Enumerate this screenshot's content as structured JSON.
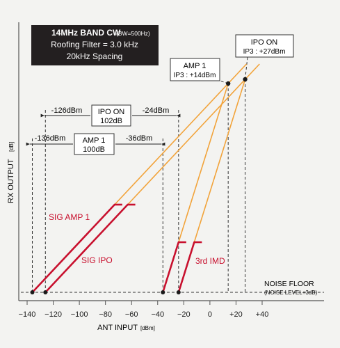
{
  "chart_data": {
    "type": "line",
    "title_lines": [
      "14MHz BAND CW",
      "(BW=500Hz)",
      "Roofing Filter = 3.0 kHz",
      "20kHz Spacing"
    ],
    "xlabel": "ANT INPUT",
    "xlabel_unit": "[dBm]",
    "ylabel": "RX OUTPUT",
    "ylabel_unit": "[dB]",
    "xlim": [
      -142,
      50
    ],
    "x_ticks": [
      {
        "value": -140,
        "label": "−140"
      },
      {
        "value": -120,
        "label": "−120"
      },
      {
        "value": -100,
        "label": "−100"
      },
      {
        "value": -80,
        "label": "−80"
      },
      {
        "value": -60,
        "label": "−60"
      },
      {
        "value": -40,
        "label": "−40"
      },
      {
        "value": -20,
        "label": "−20"
      },
      {
        "value": 0,
        "label": "0"
      },
      {
        "value": 20,
        "label": "+20"
      },
      {
        "value": 40,
        "label": "+40"
      }
    ],
    "noise_floor_label": "NOISE FLOOR",
    "noise_floor_sublabel": "(NOISE LEVEL+3dB)",
    "series": [
      {
        "name": "SIG AMP 1",
        "x": [
          -136,
          -73
        ],
        "y": [
          0,
          63
        ],
        "color": "#c8102e"
      },
      {
        "name": "SIG IPO",
        "x": [
          -126,
          -63
        ],
        "y": [
          0,
          63
        ],
        "color": "#c8102e"
      },
      {
        "name": "3rd IMD",
        "x": [
          -36,
          -24
        ],
        "y": [
          0,
          36
        ],
        "color": "#c8102e"
      },
      {
        "name": "3rd IMD",
        "x": [
          -24,
          -12
        ],
        "y": [
          0,
          36
        ],
        "color": "#c8102e"
      }
    ],
    "extrapolations": [
      {
        "x": [
          -73,
          28
        ],
        "y": [
          63,
          164
        ]
      },
      {
        "x": [
          -63,
          38
        ],
        "y": [
          63,
          164
        ]
      },
      {
        "x": [
          -24,
          14
        ],
        "y": [
          36,
          150
        ]
      },
      {
        "x": [
          -12,
          27
        ],
        "y": [
          36,
          153
        ]
      }
    ],
    "intercept_points": [
      {
        "name": "AMP 1",
        "label": "IP3 : +14dBm",
        "x": 14,
        "y": 150
      },
      {
        "name": "IPO ON",
        "label": "IP3 : +27dBm",
        "x": 27,
        "y": 153
      }
    ],
    "dynamic_ranges": [
      {
        "name": "IPO ON",
        "value_label": "102dB",
        "left_label": "-126dBm",
        "right_label": "-24dBm",
        "x": [
          -126,
          -24
        ]
      },
      {
        "name": "AMP 1",
        "value_label": "100dB",
        "left_label": "-136dBm",
        "right_label": "-36dBm",
        "x": [
          -136,
          -36
        ]
      }
    ]
  }
}
